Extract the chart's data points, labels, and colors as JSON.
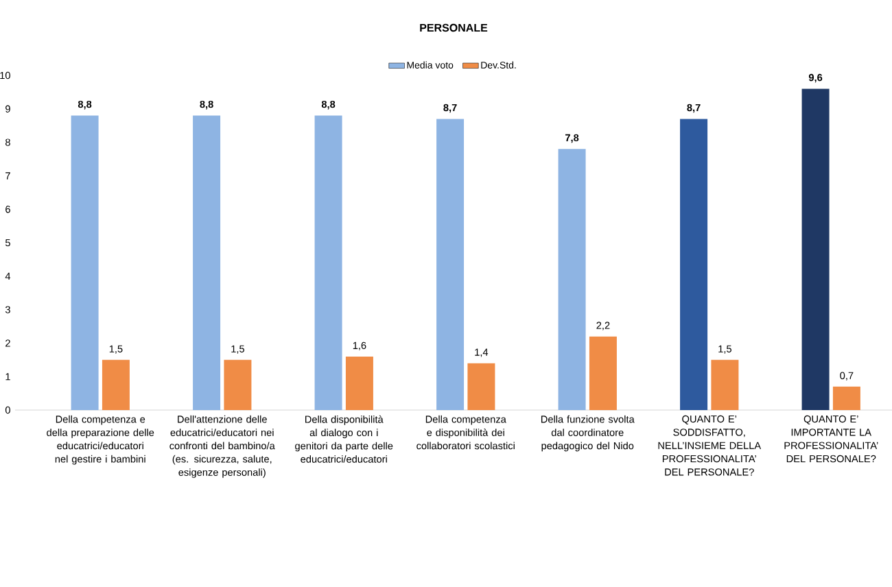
{
  "chart_data": {
    "type": "bar",
    "title": "PERSONALE",
    "categories": [
      "Della competenza e della preparazione delle educatrici/educatori nel gestire i bambini",
      "Dell'attenzione delle educatrici/educatori nei confronti del bambino/a (es. sicurezza, salute, esigenze personali)",
      "Della disponibilità al dialogo con i genitori da parte delle educatrici/educatori",
      "Della competenza e disponibilità dei collaboratori scolastici",
      "Della funzione svolta dal coordinatore pedagogico del Nido",
      "QUANTO E’ SODDISFATTO, NELL’INSIEME DELLA PROFESSIONALITA’ DEL PERSONALE?",
      "QUANTO E’ IMPORTANTE LA PROFESSIONALITA’ DEL PERSONALE?"
    ],
    "series": [
      {
        "name": "Media voto",
        "color": "#8eb4e3",
        "colors": [
          "#8eb4e3",
          "#8eb4e3",
          "#8eb4e3",
          "#8eb4e3",
          "#8eb4e3",
          "#2e5a9e",
          "#1f3864"
        ],
        "values": [
          8.8,
          8.8,
          8.8,
          8.7,
          7.8,
          8.7,
          9.6
        ],
        "value_labels": [
          "8,8",
          "8,8",
          "8,8",
          "8,7",
          "7,8",
          "8,7",
          "9,6"
        ]
      },
      {
        "name": "Dev.Std.",
        "color": "#f08c46",
        "values": [
          1.5,
          1.5,
          1.6,
          1.4,
          2.2,
          1.5,
          0.7
        ],
        "value_labels": [
          "1,5",
          "1,5",
          "1,6",
          "1,4",
          "2,2",
          "1,5",
          "0,7"
        ]
      }
    ],
    "ylim": [
      0,
      10
    ],
    "yticks": [
      0,
      1,
      2,
      3,
      4,
      5,
      6,
      7,
      8,
      9,
      10
    ],
    "grid": false,
    "legend": "top"
  }
}
